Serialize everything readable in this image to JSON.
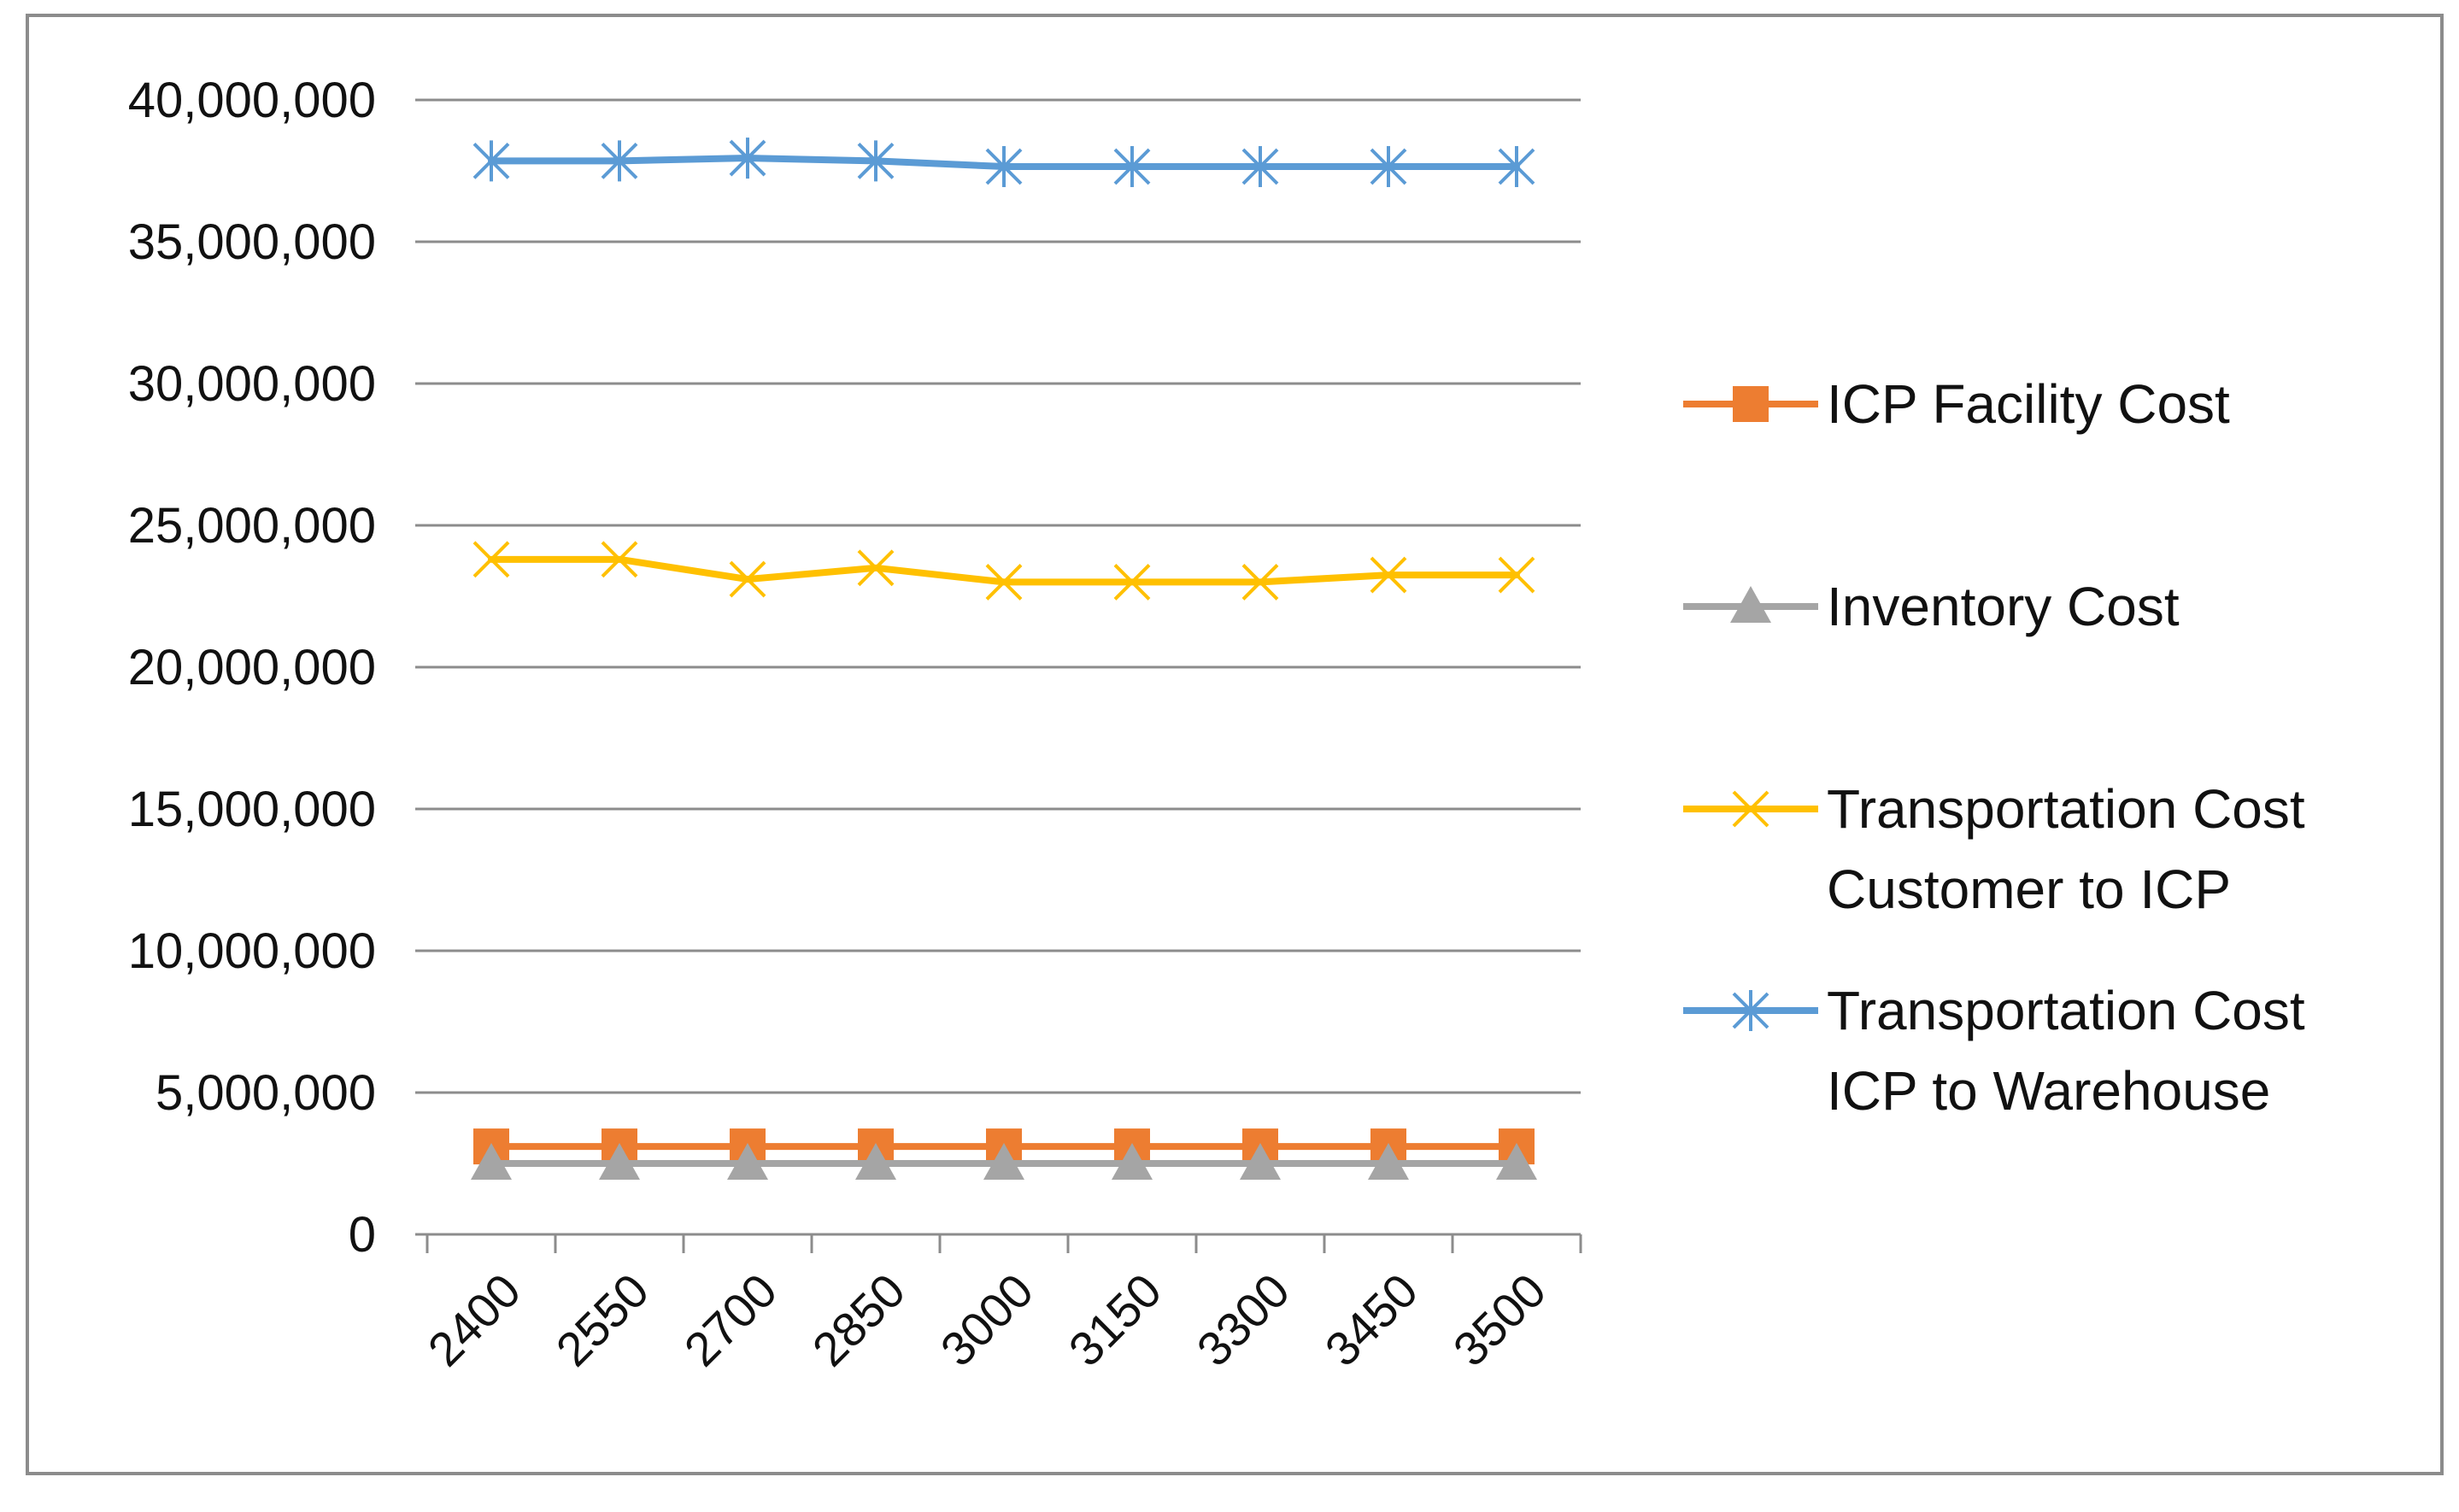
{
  "chart_data": {
    "type": "line",
    "title": "",
    "xlabel": "",
    "ylabel": "",
    "categories": [
      "2400",
      "2550",
      "2700",
      "2850",
      "3000",
      "3150",
      "3300",
      "3450",
      "3500"
    ],
    "ylim": [
      0,
      40000000
    ],
    "y_ticks": [
      0,
      5000000,
      10000000,
      15000000,
      20000000,
      25000000,
      30000000,
      35000000,
      40000000
    ],
    "y_tick_labels": [
      "0",
      "5,000,000",
      "10,000,000",
      "15,000,000",
      "20,000,000",
      "25,000,000",
      "30,000,000",
      "35,000,000",
      "40,000,000"
    ],
    "grid": "horizontal",
    "legend_position": "right",
    "series": [
      {
        "name": "ICP Facility Cost",
        "legend_lines": [
          "ICP Facility Cost"
        ],
        "color": "#ED7D31",
        "marker": "square",
        "values": [
          3100000,
          3100000,
          3100000,
          3100000,
          3100000,
          3100000,
          3100000,
          3100000,
          3100000
        ]
      },
      {
        "name": "Inventory Cost",
        "legend_lines": [
          "Inventory Cost"
        ],
        "color": "#A5A5A5",
        "marker": "triangle",
        "values": [
          2500000,
          2500000,
          2500000,
          2500000,
          2500000,
          2500000,
          2500000,
          2500000,
          2500000
        ]
      },
      {
        "name": "Transportation Cost Customer to ICP",
        "legend_lines": [
          "Transportation Cost",
          "Customer to ICP"
        ],
        "color": "#FFC000",
        "marker": "x",
        "values": [
          23800000,
          23800000,
          23100000,
          23500000,
          23000000,
          23000000,
          23000000,
          23250000,
          23250000
        ]
      },
      {
        "name": "Transportation Cost ICP to Warehouse",
        "legend_lines": [
          "Transportation Cost",
          "ICP to Warehouse"
        ],
        "color": "#5B9BD5",
        "marker": "star",
        "values": [
          37850000,
          37850000,
          37950000,
          37850000,
          37650000,
          37650000,
          37650000,
          37650000,
          37650000
        ]
      }
    ]
  }
}
